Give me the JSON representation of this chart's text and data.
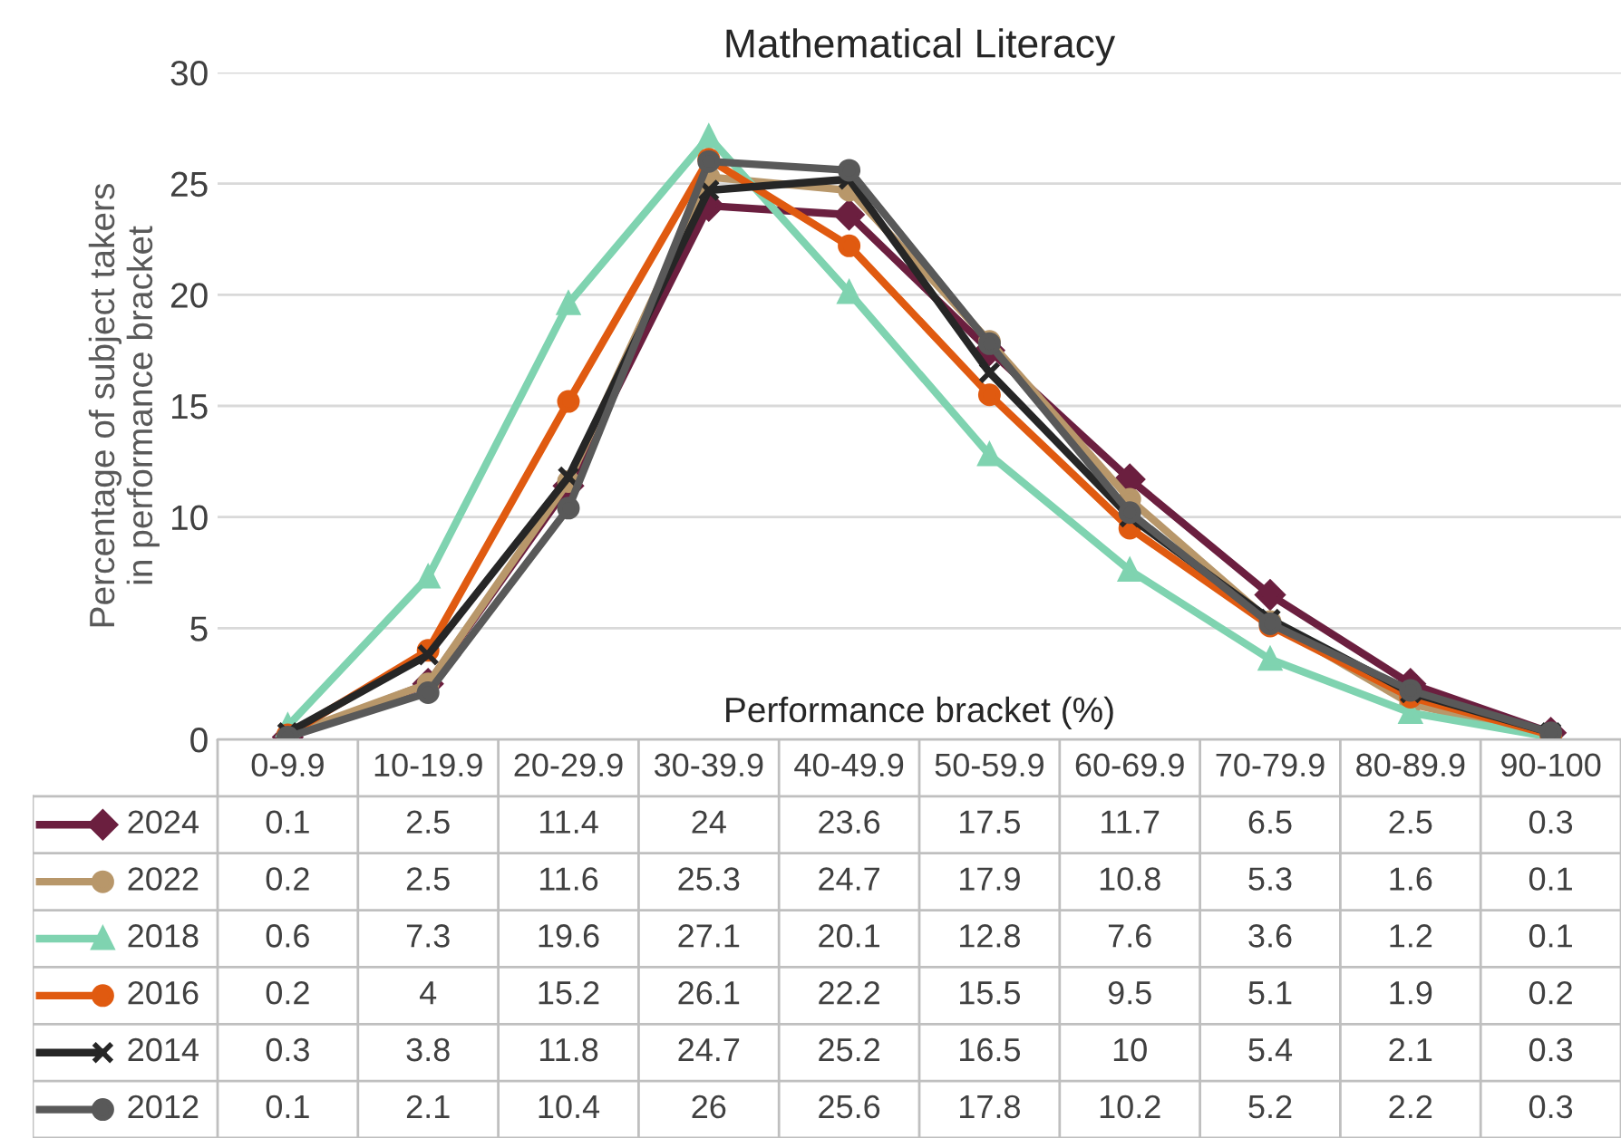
{
  "chart_data": {
    "type": "line",
    "title": "Mathematical Literacy",
    "xlabel": "Performance bracket (%)",
    "ylabel": "Percentage of subject takers\nin performance bracket",
    "categories": [
      "0-9.9",
      "10-19.9",
      "20-29.9",
      "30-39.9",
      "40-49.9",
      "50-59.9",
      "60-69.9",
      "70-79.9",
      "80-89.9",
      "90-100"
    ],
    "series": [
      {
        "name": "2024",
        "color": "#6b1f3f",
        "marker": "diamond",
        "values": [
          0.1,
          2.5,
          11.4,
          24,
          23.6,
          17.5,
          11.7,
          6.5,
          2.5,
          0.3
        ]
      },
      {
        "name": "2022",
        "color": "#b8976a",
        "marker": "circle",
        "values": [
          0.2,
          2.5,
          11.6,
          25.3,
          24.7,
          17.9,
          10.8,
          5.3,
          1.6,
          0.1
        ]
      },
      {
        "name": "2018",
        "color": "#7fd3b0",
        "marker": "triangle",
        "values": [
          0.6,
          7.3,
          19.6,
          27.1,
          20.1,
          12.8,
          7.6,
          3.6,
          1.2,
          0.1
        ]
      },
      {
        "name": "2016",
        "color": "#e05a10",
        "marker": "circle",
        "values": [
          0.2,
          4,
          15.2,
          26.1,
          22.2,
          15.5,
          9.5,
          5.1,
          1.9,
          0.2
        ]
      },
      {
        "name": "2014",
        "color": "#262626",
        "marker": "cross",
        "values": [
          0.3,
          3.8,
          11.8,
          24.7,
          25.2,
          16.5,
          10,
          5.4,
          2.1,
          0.3
        ]
      },
      {
        "name": "2012",
        "color": "#595959",
        "marker": "circle",
        "values": [
          0.1,
          2.1,
          10.4,
          26,
          25.6,
          17.8,
          10.2,
          5.2,
          2.2,
          0.3
        ]
      }
    ],
    "ylim": [
      0,
      30
    ],
    "yticks": [
      0,
      5,
      10,
      15,
      20,
      25,
      30
    ],
    "grid": "y",
    "legend": "bottom",
    "data_labels": true,
    "line_style": "solid"
  }
}
